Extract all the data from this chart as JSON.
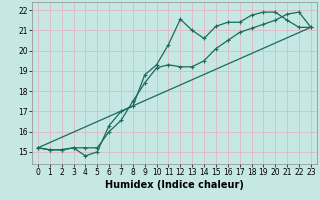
{
  "title": "",
  "xlabel": "Humidex (Indice chaleur)",
  "ylabel": "",
  "bg_color": "#c5e8e5",
  "plot_bg_color": "#c5e8e5",
  "grid_color": "#e0b8c0",
  "line_color": "#1a6b5a",
  "xlim": [
    -0.5,
    23.5
  ],
  "ylim": [
    14.4,
    22.4
  ],
  "xticks": [
    0,
    1,
    2,
    3,
    4,
    5,
    6,
    7,
    8,
    9,
    10,
    11,
    12,
    13,
    14,
    15,
    16,
    17,
    18,
    19,
    20,
    21,
    22,
    23
  ],
  "yticks": [
    15,
    16,
    17,
    18,
    19,
    20,
    21,
    22
  ],
  "series1_x": [
    0,
    1,
    2,
    3,
    4,
    5,
    6,
    7,
    8,
    9,
    10,
    11,
    12,
    13,
    14,
    15,
    16,
    17,
    18,
    19,
    20,
    21,
    22,
    23
  ],
  "series1_y": [
    15.2,
    15.1,
    15.1,
    15.2,
    14.8,
    15.0,
    16.3,
    17.0,
    17.25,
    18.8,
    19.3,
    20.3,
    21.55,
    21.0,
    20.6,
    21.2,
    21.4,
    21.4,
    21.75,
    21.9,
    21.9,
    21.5,
    21.15,
    21.15
  ],
  "series2_x": [
    0,
    1,
    2,
    3,
    4,
    5,
    6,
    7,
    8,
    9,
    10,
    11,
    12,
    13,
    14,
    15,
    16,
    17,
    18,
    19,
    20,
    21,
    22,
    23
  ],
  "series2_y": [
    15.2,
    15.1,
    15.1,
    15.2,
    15.2,
    15.2,
    16.0,
    16.55,
    17.5,
    18.4,
    19.15,
    19.3,
    19.2,
    19.2,
    19.5,
    20.1,
    20.5,
    20.9,
    21.1,
    21.3,
    21.5,
    21.8,
    21.9,
    21.15
  ],
  "trend_x": [
    0,
    23
  ],
  "trend_y": [
    15.2,
    21.15
  ],
  "xlabel_fontsize": 7,
  "tick_fontsize": 5.5,
  "linewidth": 0.9,
  "marker_size": 3
}
